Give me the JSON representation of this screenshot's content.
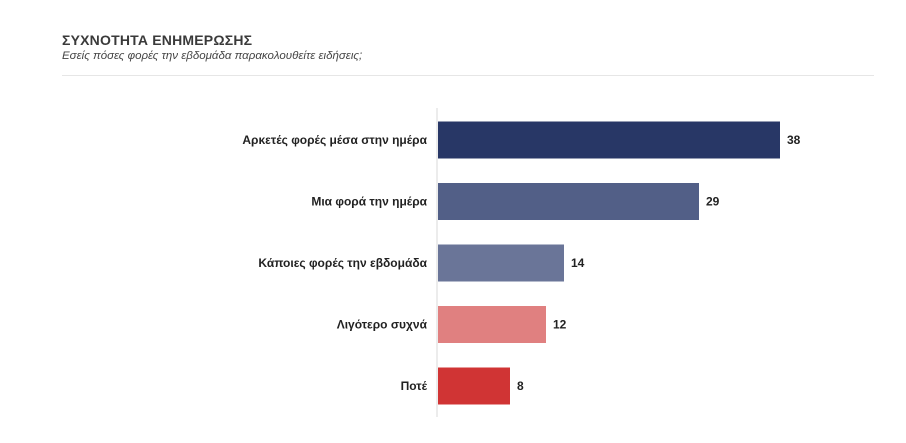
{
  "header": {
    "title": "ΣΥΧΝΟΤΗΤΑ ΕΝΗΜΕΡΩΣΗΣ",
    "subtitle": "Εσείς πόσες φορές την εβδομάδα παρακολουθείτε ειδήσεις;"
  },
  "chart_data": {
    "type": "bar",
    "orientation": "horizontal",
    "title": "ΣΥΧΝΟΤΗΤΑ ΕΝΗΜΕΡΩΣΗΣ",
    "subtitle": "Εσείς πόσες φορές την εβδομάδα παρακολουθείτε ειδήσεις;",
    "categories": [
      "Αρκετές φορές μέσα στην ημέρα",
      "Μια φορά την ημέρα",
      "Κάποιες φορές την εβδομάδα",
      "Λιγότερο συχνά",
      "Ποτέ"
    ],
    "values": [
      38,
      29,
      14,
      12,
      8
    ],
    "colors": [
      "#283766",
      "#525f87",
      "#6a7598",
      "#e08080",
      "#d03434"
    ],
    "xlim": [
      0,
      40
    ],
    "grid": false,
    "legend": "none",
    "data_labels": true
  }
}
